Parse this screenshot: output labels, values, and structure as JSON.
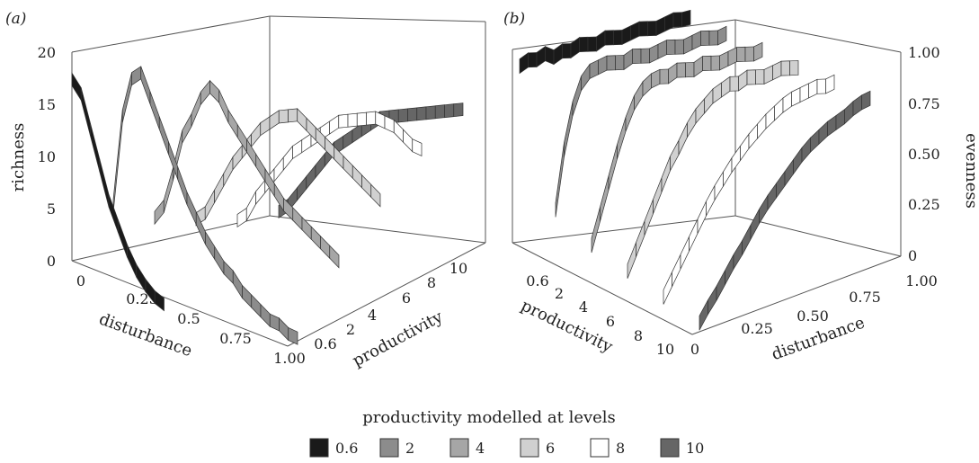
{
  "chart_data": [
    {
      "type": "surface-ribbons",
      "panel_label": "(a)",
      "zlabel": "richness",
      "xlabel": "disturbance",
      "ylabel": "productivity",
      "z_ticks": [
        "0",
        "5",
        "10",
        "15",
        "20"
      ],
      "x_ticks": [
        "0",
        "0.25",
        "0.5",
        "0.75",
        "1.00"
      ],
      "y_ticks": [
        "0.6",
        "2",
        "4",
        "6",
        "8",
        "10"
      ],
      "zlim": [
        0,
        20
      ],
      "disturbance": [
        0,
        0.05,
        0.1,
        0.15,
        0.2,
        0.25,
        0.3,
        0.35,
        0.4,
        0.45,
        0.5,
        0.55,
        0.6,
        0.65,
        0.7,
        0.75,
        0.8,
        0.85,
        0.9,
        0.95,
        1.0
      ],
      "series": [
        {
          "name": "0.6",
          "values": [
            18,
            17,
            14,
            11,
            8,
            6,
            4,
            2.5,
            1.5,
            0.8,
            0.5,
            null,
            null,
            null,
            null,
            null,
            null,
            null,
            null,
            null,
            null
          ]
        },
        {
          "name": "2",
          "values": [
            5,
            14,
            18,
            19,
            17,
            15,
            13,
            11,
            9,
            7.5,
            6,
            5,
            4,
            3.5,
            2.5,
            2,
            1.5,
            1,
            1,
            0.5,
            0.5
          ]
        },
        {
          "name": "4",
          "values": [
            3,
            4.5,
            8,
            12,
            14,
            16.5,
            18,
            17.5,
            16,
            15,
            14,
            13,
            12,
            11,
            10,
            9.5,
            9,
            8.5,
            8,
            7.5,
            7
          ]
        },
        {
          "name": "6",
          "values": [
            2,
            3,
            5,
            7,
            9,
            10.5,
            12,
            13.5,
            14.5,
            15.5,
            16,
            16.5,
            16,
            15.5,
            15,
            14.5,
            14,
            13.5,
            13,
            12.5,
            12
          ]
        },
        {
          "name": "8",
          "values": [
            1,
            2,
            4,
            5.5,
            7,
            8.5,
            10,
            11,
            12,
            13,
            14,
            15,
            15.5,
            16,
            16.5,
            17,
            17,
            17,
            16.5,
            16,
            16
          ]
        },
        {
          "name": "10",
          "values": [
            1,
            2,
            3.5,
            5,
            6.5,
            8,
            9.5,
            10.5,
            11.5,
            12.5,
            13.5,
            14.5,
            15,
            15.5,
            16,
            16.5,
            17,
            17.5,
            18,
            18.5,
            19
          ]
        }
      ]
    },
    {
      "type": "surface-ribbons",
      "panel_label": "(b)",
      "zlabel": "evenness",
      "xlabel": "disturbance",
      "ylabel": "productivity",
      "z_ticks": [
        "0",
        "0.25",
        "0.50",
        "0.75",
        "1.00"
      ],
      "x_ticks": [
        "0",
        "0.25",
        "0.50",
        "0.75",
        "1.00"
      ],
      "y_ticks": [
        "0.6",
        "2",
        "4",
        "6",
        "8",
        "10"
      ],
      "zlim": [
        0,
        1
      ],
      "disturbance": [
        0,
        0.05,
        0.1,
        0.15,
        0.2,
        0.25,
        0.3,
        0.35,
        0.4,
        0.45,
        0.5,
        0.55,
        0.6,
        0.65,
        0.7,
        0.75,
        0.8,
        0.85,
        0.9,
        0.95,
        1.0
      ],
      "series": [
        {
          "name": "0.6",
          "values": [
            0.96,
            0.98,
            0.97,
            0.99,
            0.96,
            0.98,
            0.97,
            0.99,
            0.98,
            0.97,
            0.99,
            0.98,
            0.97,
            0.98,
            0.99,
            0.98,
            0.97,
            0.98,
            0.99,
            0.98,
            0.98
          ]
        },
        {
          "name": "2",
          "values": [
            0.3,
            0.6,
            0.8,
            0.92,
            0.97,
            0.98,
            0.99,
            0.98,
            0.97,
            0.99,
            0.98,
            0.97,
            0.98,
            0.99,
            0.98,
            0.97,
            0.98,
            0.99,
            0.98,
            0.97,
            0.98
          ]
        },
        {
          "name": "4",
          "values": [
            0.2,
            0.35,
            0.5,
            0.65,
            0.78,
            0.88,
            0.94,
            0.97,
            0.98,
            0.97,
            0.99,
            0.98,
            0.97,
            0.99,
            0.98,
            0.97,
            0.98,
            0.99,
            0.98,
            0.97,
            0.98
          ]
        },
        {
          "name": "6",
          "values": [
            0.15,
            0.25,
            0.35,
            0.45,
            0.55,
            0.65,
            0.72,
            0.8,
            0.86,
            0.9,
            0.94,
            0.96,
            0.98,
            0.97,
            0.99,
            0.98,
            0.97,
            0.98,
            0.99,
            0.98,
            0.97
          ]
        },
        {
          "name": "8",
          "values": [
            0.1,
            0.18,
            0.26,
            0.34,
            0.42,
            0.5,
            0.57,
            0.63,
            0.69,
            0.74,
            0.79,
            0.83,
            0.87,
            0.9,
            0.93,
            0.95,
            0.96,
            0.97,
            0.98,
            0.97,
            0.98
          ]
        },
        {
          "name": "10",
          "values": [
            0.05,
            0.12,
            0.18,
            0.25,
            0.32,
            0.38,
            0.45,
            0.52,
            0.58,
            0.63,
            0.68,
            0.73,
            0.78,
            0.82,
            0.85,
            0.88,
            0.9,
            0.92,
            0.95,
            0.97,
            0.98
          ]
        }
      ]
    }
  ],
  "legend": {
    "title": "productivity modelled at levels",
    "items": [
      {
        "label": "0.6",
        "color": "#1a1a1a"
      },
      {
        "label": "2",
        "color": "#8c8c8c"
      },
      {
        "label": "4",
        "color": "#a6a6a6"
      },
      {
        "label": "6",
        "color": "#d0d0d0"
      },
      {
        "label": "8",
        "color": "#ffffff"
      },
      {
        "label": "10",
        "color": "#666666"
      }
    ]
  }
}
